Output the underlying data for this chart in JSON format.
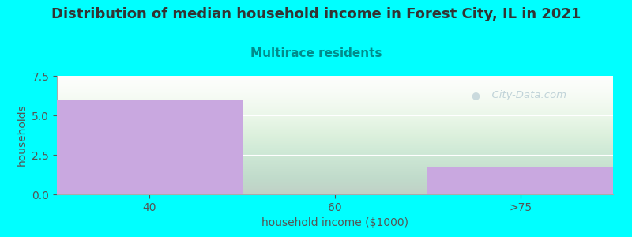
{
  "title": "Distribution of median household income in Forest City, IL in 2021",
  "subtitle": "Multirace residents",
  "xlabel": "household income ($1000)",
  "ylabel": "households",
  "categories": [
    "40",
    "60",
    ">75"
  ],
  "values": [
    6.0,
    0.0,
    1.75
  ],
  "bar_color": "#c9a8e0",
  "bg_color": "#00FFFF",
  "plot_bg_top": "#e8f5e8",
  "plot_bg_bottom": "#ffffff",
  "title_color": "#333333",
  "subtitle_color": "#008B8B",
  "axis_label_color": "#555555",
  "tick_color": "#555555",
  "ylim": [
    0,
    7.5
  ],
  "yticks": [
    0,
    2.5,
    5,
    7.5
  ],
  "watermark_text": "  City-Data.com",
  "watermark_color": "#b8cdd4",
  "title_fontsize": 13,
  "subtitle_fontsize": 11,
  "label_fontsize": 10,
  "tick_fontsize": 10
}
